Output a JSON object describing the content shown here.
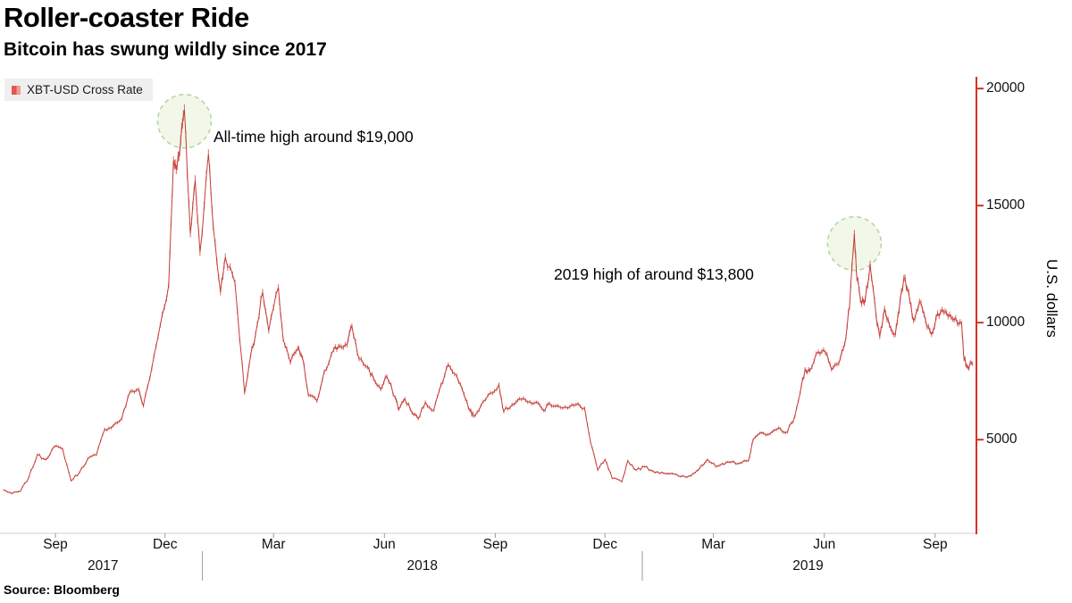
{
  "header": {
    "title": "Roller-coaster Ride",
    "subtitle": "Bitcoin has swung wildly since 2017"
  },
  "legend": {
    "label": "XBT-USD Cross Rate",
    "marker_dark": "#e2574f",
    "marker_light": "#f59a93"
  },
  "annotations": [
    {
      "text": "All-time high around $19,000"
    },
    {
      "text": "2019 high of around $13,800"
    }
  ],
  "source": "Source: Bloomberg",
  "chart_data": {
    "type": "line",
    "title": "Roller-coaster Ride",
    "subtitle": "Bitcoin has swung wildly since 2017",
    "series_name": "XBT-USD Cross Rate",
    "ylabel": "U.S. dollars",
    "line_color": "#c43c35",
    "axis_color": "#d93025",
    "grid": false,
    "legend_position": "top-left",
    "ylim": [
      1000,
      20500
    ],
    "y_ticks": [
      5000,
      10000,
      15000,
      20000
    ],
    "x_range": [
      "2017-07-20",
      "2019-10-03"
    ],
    "x_tick_labels": [
      "Sep",
      "Dec",
      "Mar",
      "Jun",
      "Sep",
      "Dec",
      "Mar",
      "Jun",
      "Sep"
    ],
    "x_tick_dates": [
      "2017-09-01",
      "2017-12-01",
      "2018-03-01",
      "2018-06-01",
      "2018-09-01",
      "2018-12-01",
      "2019-03-01",
      "2019-06-01",
      "2019-09-01"
    ],
    "year_labels": [
      "2017",
      "2018",
      "2019"
    ],
    "points": [
      [
        "2017-07-20",
        2850
      ],
      [
        "2017-07-27",
        2700
      ],
      [
        "2017-08-03",
        2800
      ],
      [
        "2017-08-10",
        3400
      ],
      [
        "2017-08-17",
        4350
      ],
      [
        "2017-08-24",
        4150
      ],
      [
        "2017-08-31",
        4700
      ],
      [
        "2017-09-07",
        4600
      ],
      [
        "2017-09-14",
        3250
      ],
      [
        "2017-09-21",
        3600
      ],
      [
        "2017-09-28",
        4200
      ],
      [
        "2017-10-05",
        4350
      ],
      [
        "2017-10-12",
        5450
      ],
      [
        "2017-10-19",
        5600
      ],
      [
        "2017-10-26",
        5900
      ],
      [
        "2017-11-02",
        7050
      ],
      [
        "2017-11-09",
        7150
      ],
      [
        "2017-11-13",
        6450
      ],
      [
        "2017-11-20",
        8050
      ],
      [
        "2017-11-27",
        9900
      ],
      [
        "2017-12-04",
        11600
      ],
      [
        "2017-12-08",
        16900
      ],
      [
        "2017-12-11",
        16700
      ],
      [
        "2017-12-14",
        17800
      ],
      [
        "2017-12-17",
        19100
      ],
      [
        "2017-12-22",
        13800
      ],
      [
        "2017-12-26",
        16100
      ],
      [
        "2017-12-30",
        13000
      ],
      [
        "2018-01-06",
        17200
      ],
      [
        "2018-01-10",
        14100
      ],
      [
        "2018-01-16",
        11300
      ],
      [
        "2018-01-20",
        12800
      ],
      [
        "2018-01-28",
        11700
      ],
      [
        "2018-02-05",
        7000
      ],
      [
        "2018-02-10",
        8600
      ],
      [
        "2018-02-14",
        9500
      ],
      [
        "2018-02-20",
        11300
      ],
      [
        "2018-02-25",
        9650
      ],
      [
        "2018-03-05",
        11500
      ],
      [
        "2018-03-09",
        9300
      ],
      [
        "2018-03-15",
        8300
      ],
      [
        "2018-03-21",
        8900
      ],
      [
        "2018-03-25",
        8500
      ],
      [
        "2018-03-30",
        6900
      ],
      [
        "2018-04-06",
        6650
      ],
      [
        "2018-04-12",
        7900
      ],
      [
        "2018-04-20",
        8850
      ],
      [
        "2018-04-25",
        9000
      ],
      [
        "2018-05-01",
        9050
      ],
      [
        "2018-05-05",
        9850
      ],
      [
        "2018-05-11",
        8450
      ],
      [
        "2018-05-18",
        8100
      ],
      [
        "2018-05-23",
        7600
      ],
      [
        "2018-05-29",
        7150
      ],
      [
        "2018-06-03",
        7700
      ],
      [
        "2018-06-10",
        6800
      ],
      [
        "2018-06-13",
        6300
      ],
      [
        "2018-06-18",
        6750
      ],
      [
        "2018-06-24",
        6150
      ],
      [
        "2018-06-29",
        5900
      ],
      [
        "2018-07-05",
        6600
      ],
      [
        "2018-07-12",
        6250
      ],
      [
        "2018-07-18",
        7350
      ],
      [
        "2018-07-24",
        8200
      ],
      [
        "2018-07-31",
        7750
      ],
      [
        "2018-08-06",
        6950
      ],
      [
        "2018-08-11",
        6250
      ],
      [
        "2018-08-14",
        6000
      ],
      [
        "2018-08-20",
        6450
      ],
      [
        "2018-08-28",
        7000
      ],
      [
        "2018-09-04",
        7350
      ],
      [
        "2018-09-08",
        6200
      ],
      [
        "2018-09-15",
        6500
      ],
      [
        "2018-09-21",
        6750
      ],
      [
        "2018-09-28",
        6600
      ],
      [
        "2018-10-05",
        6600
      ],
      [
        "2018-10-11",
        6250
      ],
      [
        "2018-10-16",
        6550
      ],
      [
        "2018-10-23",
        6450
      ],
      [
        "2018-10-31",
        6350
      ],
      [
        "2018-11-07",
        6500
      ],
      [
        "2018-11-14",
        6350
      ],
      [
        "2018-11-19",
        4900
      ],
      [
        "2018-11-25",
        3700
      ],
      [
        "2018-12-01",
        4150
      ],
      [
        "2018-12-07",
        3350
      ],
      [
        "2018-12-15",
        3200
      ],
      [
        "2018-12-20",
        4100
      ],
      [
        "2018-12-27",
        3700
      ],
      [
        "2019-01-03",
        3850
      ],
      [
        "2019-01-10",
        3650
      ],
      [
        "2019-01-17",
        3600
      ],
      [
        "2019-01-24",
        3550
      ],
      [
        "2019-01-31",
        3450
      ],
      [
        "2019-02-07",
        3400
      ],
      [
        "2019-02-14",
        3600
      ],
      [
        "2019-02-19",
        3900
      ],
      [
        "2019-02-24",
        4150
      ],
      [
        "2019-03-03",
        3850
      ],
      [
        "2019-03-10",
        3950
      ],
      [
        "2019-03-16",
        4050
      ],
      [
        "2019-03-23",
        4000
      ],
      [
        "2019-03-30",
        4100
      ],
      [
        "2019-04-03",
        5000
      ],
      [
        "2019-04-10",
        5300
      ],
      [
        "2019-04-17",
        5250
      ],
      [
        "2019-04-24",
        5500
      ],
      [
        "2019-04-30",
        5300
      ],
      [
        "2019-05-06",
        5750
      ],
      [
        "2019-05-12",
        7000
      ],
      [
        "2019-05-16",
        8000
      ],
      [
        "2019-05-20",
        7950
      ],
      [
        "2019-05-27",
        8750
      ],
      [
        "2019-06-02",
        8700
      ],
      [
        "2019-06-07",
        8000
      ],
      [
        "2019-06-13",
        8250
      ],
      [
        "2019-06-18",
        9100
      ],
      [
        "2019-06-22",
        10700
      ],
      [
        "2019-06-26",
        13800
      ],
      [
        "2019-06-28",
        11900
      ],
      [
        "2019-07-02",
        10800
      ],
      [
        "2019-07-05",
        11000
      ],
      [
        "2019-07-09",
        12500
      ],
      [
        "2019-07-14",
        10300
      ],
      [
        "2019-07-17",
        9400
      ],
      [
        "2019-07-21",
        10600
      ],
      [
        "2019-07-25",
        9900
      ],
      [
        "2019-07-30",
        9500
      ],
      [
        "2019-08-02",
        10500
      ],
      [
        "2019-08-06",
        11900
      ],
      [
        "2019-08-10",
        11300
      ],
      [
        "2019-08-14",
        10100
      ],
      [
        "2019-08-19",
        10900
      ],
      [
        "2019-08-24",
        10100
      ],
      [
        "2019-08-29",
        9500
      ],
      [
        "2019-09-03",
        10400
      ],
      [
        "2019-09-08",
        10450
      ],
      [
        "2019-09-13",
        10350
      ],
      [
        "2019-09-18",
        10200
      ],
      [
        "2019-09-23",
        9950
      ],
      [
        "2019-09-25",
        8450
      ],
      [
        "2019-09-28",
        8100
      ],
      [
        "2019-10-02",
        8250
      ]
    ]
  }
}
